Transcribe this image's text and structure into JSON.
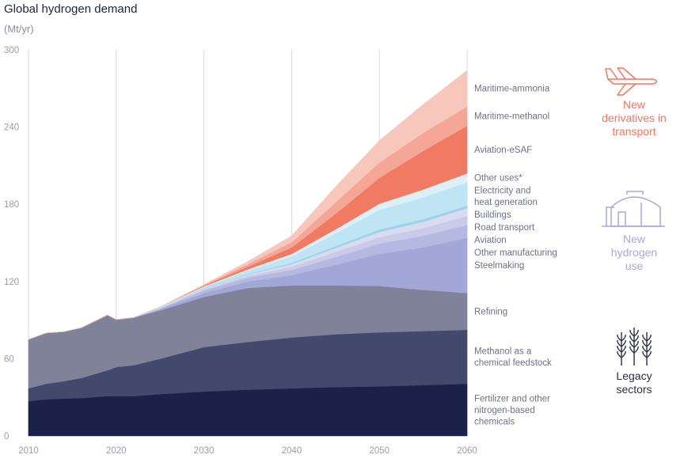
{
  "title": "Global hydrogen demand",
  "unit": "(Mt/yr)",
  "groups": {
    "transport": {
      "label": [
        "New",
        "derivatives in",
        "transport"
      ],
      "color": "#ef7660",
      "icon": "airplane-icon"
    },
    "new_use": {
      "label": [
        "New",
        "hydrogen",
        "use"
      ],
      "color": "#a6a8dc",
      "icon": "building-icon"
    },
    "legacy": {
      "label": [
        "Legacy",
        "sectors"
      ],
      "color": "#2d2f45",
      "icon": "wheat-icon"
    }
  },
  "chart_data": {
    "type": "area",
    "stacked": true,
    "title": "Global hydrogen demand",
    "ylabel": "(Mt/yr)",
    "xlabel": "",
    "xlim": [
      2010,
      2060
    ],
    "ylim": [
      0,
      300
    ],
    "x_ticks": [
      "2010",
      "2020",
      "2030",
      "2040",
      "2050",
      "2060"
    ],
    "y_ticks": [
      "0",
      "60",
      "120",
      "180",
      "240",
      "300"
    ],
    "grid": true,
    "x": [
      2010,
      2012,
      2014,
      2016,
      2019,
      2020,
      2022,
      2025,
      2030,
      2035,
      2040,
      2045,
      2050,
      2055,
      2060
    ],
    "series": [
      {
        "name": "Fertilizer and other nitrogen-based chemicals",
        "color": "#1b2149",
        "values": [
          27,
          28.5,
          29,
          29.5,
          31,
          31,
          31,
          32.5,
          34.5,
          36,
          37,
          38,
          38.5,
          39.5,
          40.5
        ]
      },
      {
        "name": "Methanol as a chemical feedstock",
        "color": "#43496c",
        "values": [
          10,
          12,
          13.5,
          15.5,
          20,
          22.5,
          24,
          27.5,
          34.5,
          37,
          39.5,
          41,
          42,
          42,
          42
        ]
      },
      {
        "name": "Refining",
        "color": "#7f8298",
        "values": [
          38,
          39.5,
          38.5,
          39,
          43,
          37,
          37,
          37.5,
          39,
          42,
          40.5,
          38,
          36,
          32,
          28.5
        ]
      },
      {
        "name": "Steelmaking",
        "color": "#a3a7d7",
        "values": [
          0,
          0,
          0,
          0,
          0,
          0,
          0,
          1,
          3,
          5,
          8,
          16,
          25,
          33,
          43
        ]
      },
      {
        "name": "Other manufacturing",
        "color": "#b5b8e0",
        "values": [
          0,
          0,
          0,
          0,
          0,
          0,
          0,
          0.5,
          2,
          3,
          4,
          6,
          8,
          9,
          10
        ]
      },
      {
        "name": "Aviation",
        "color": "#c9cbe8",
        "values": [
          0,
          0,
          0,
          0,
          0,
          0,
          0,
          0.3,
          1,
          1.5,
          2.5,
          4,
          5,
          6,
          7
        ]
      },
      {
        "name": "Road transport",
        "color": "#d9dbef",
        "values": [
          0,
          0,
          0,
          0,
          0,
          0,
          0,
          0.2,
          0.5,
          1,
          2,
          3,
          4,
          5,
          6
        ]
      },
      {
        "name": "Buildings",
        "color": "#9fd2e8",
        "values": [
          0,
          0,
          0,
          0,
          0,
          0,
          0,
          0,
          0.3,
          0.5,
          1,
          1.5,
          2,
          2,
          2
        ]
      },
      {
        "name": "Electricity and heat generation",
        "color": "#bfe4f3",
        "values": [
          0,
          0,
          0,
          0,
          0,
          0,
          0,
          0.5,
          1,
          2.5,
          5,
          10,
          15,
          17,
          18
        ]
      },
      {
        "name": "Other uses*",
        "color": "#dcf0f8",
        "values": [
          0,
          0,
          0,
          0,
          0,
          0,
          0,
          0.3,
          0.5,
          1,
          2,
          3,
          5,
          6,
          7
        ]
      },
      {
        "name": "Aviation-eSAF",
        "color": "#f07a62",
        "values": [
          0,
          0,
          0,
          0,
          0,
          0,
          0,
          0,
          0.5,
          2,
          5,
          12,
          20,
          30,
          37
        ]
      },
      {
        "name": "Maritime-methanol",
        "color": "#f5a696",
        "values": [
          0,
          0,
          0,
          0,
          0,
          0,
          0,
          0,
          0.5,
          2,
          4,
          9,
          12,
          14,
          15
        ]
      },
      {
        "name": "Maritime-ammonia",
        "color": "#f8c7bc",
        "values": [
          0,
          0,
          0,
          0,
          0,
          0,
          0,
          0,
          0.3,
          2,
          5,
          12,
          17,
          22,
          28
        ]
      }
    ],
    "series_labels": [
      {
        "lines": [
          "Maritime-ammonia"
        ],
        "group": "transport"
      },
      {
        "lines": [
          "Maritime-methanol"
        ],
        "group": "transport"
      },
      {
        "lines": [
          "Aviation-eSAF"
        ],
        "group": "transport"
      },
      {
        "lines": [
          "Other uses*"
        ],
        "group": "new_use"
      },
      {
        "lines": [
          "Electricity and",
          "heat generation"
        ],
        "group": "new_use"
      },
      {
        "lines": [
          "Buildings"
        ],
        "group": "new_use"
      },
      {
        "lines": [
          "Road transport"
        ],
        "group": "new_use"
      },
      {
        "lines": [
          "Aviation"
        ],
        "group": "new_use"
      },
      {
        "lines": [
          "Other manufacturing"
        ],
        "group": "new_use"
      },
      {
        "lines": [
          "Steelmaking"
        ],
        "group": "new_use"
      },
      {
        "lines": [
          "Refining"
        ],
        "group": "legacy"
      },
      {
        "lines": [
          "Methanol as a",
          "chemical feedstock"
        ],
        "group": "legacy"
      },
      {
        "lines": [
          "Fertilizer and other",
          "nitrogen-based",
          "chemicals"
        ],
        "group": "legacy"
      }
    ]
  }
}
